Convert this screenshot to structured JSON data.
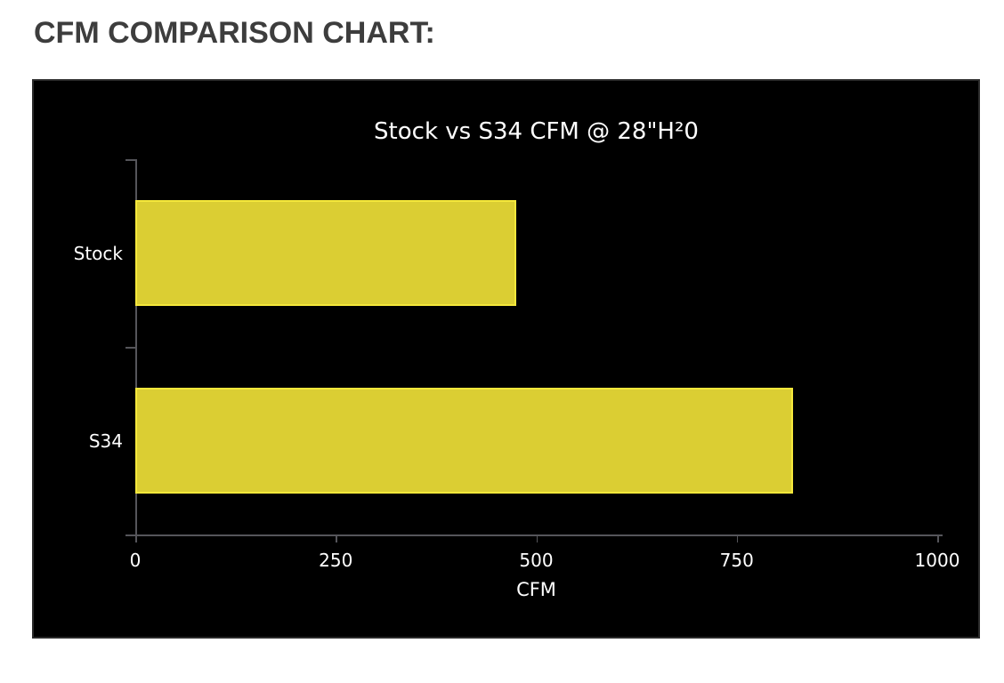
{
  "page": {
    "heading": "CFM COMPARISON CHART:"
  },
  "chart_data": {
    "type": "bar",
    "orientation": "horizontal",
    "title": "Stock vs S34 CFM @ 28\"H²0",
    "categories": [
      "Stock",
      "S34"
    ],
    "values": [
      475,
      820
    ],
    "xlabel": "CFM",
    "ylabel": "",
    "xlim": [
      0,
      1000
    ],
    "xticks": [
      0,
      250,
      500,
      750,
      1000
    ],
    "grid": false,
    "legend": false,
    "colors": {
      "plot_background": "#000000",
      "bar_fill": "#dbce33",
      "bar_border": "#f5e83b",
      "axis_line": "#55555a",
      "chart_text": "#ffffff",
      "heading_text": "#3d3d3d",
      "page_background": "#ffffff"
    }
  }
}
